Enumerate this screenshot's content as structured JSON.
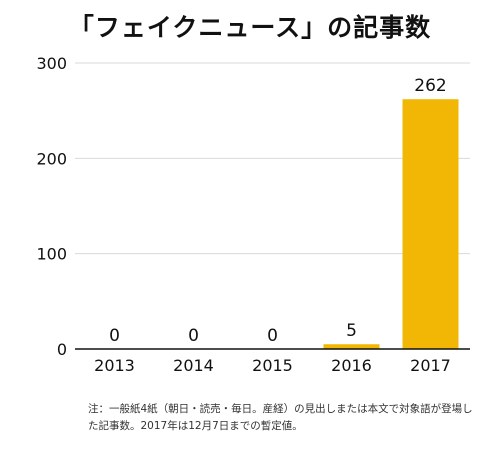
{
  "title": "「フェイクニュース」の記事数",
  "note": "注：一般紙4紙（朝日・読売・毎日。産経）の見出しまたは本文で対象語が登場した記事数。2017年は12月7日までの暫定値。",
  "colors": {
    "bar": "#F2B705",
    "axis": "#111111",
    "grid": "#d9d9d9",
    "text": "#111111"
  },
  "chart_data": {
    "type": "bar",
    "title": "「フェイクニュース」の記事数",
    "categories": [
      "2013",
      "2014",
      "2015",
      "2016",
      "2017"
    ],
    "values": [
      0,
      0,
      0,
      5,
      262
    ],
    "data_labels": [
      "0",
      "0",
      "0",
      "5",
      "262"
    ],
    "yticks": [
      "0",
      "100",
      "200",
      "300"
    ],
    "ylim": [
      0,
      300
    ],
    "grid": true,
    "xlabel": "",
    "ylabel": ""
  }
}
